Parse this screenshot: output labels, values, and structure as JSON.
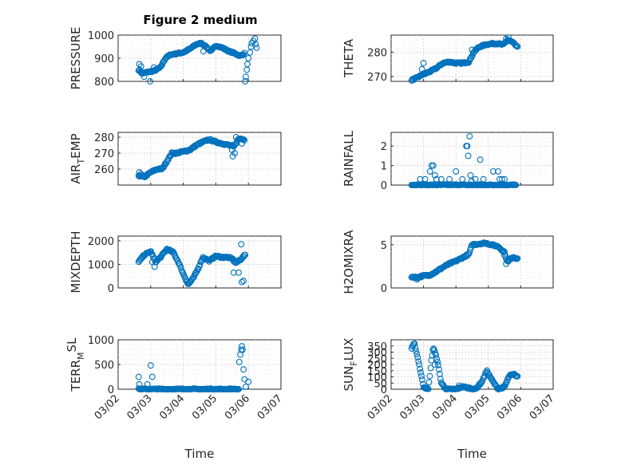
{
  "figure": {
    "title": "Figure 2 medium"
  },
  "colors": {
    "marker": "#0072bd",
    "axis": "#262626",
    "background": "#ffffff"
  },
  "chart_data": [
    {
      "type": "scatter",
      "id": "pressure",
      "ylabel": "PRESSURE",
      "ysub": "",
      "xlabel": "",
      "xlim": [
        0,
        5
      ],
      "ylim": [
        800,
        1000
      ],
      "yticks": [
        800,
        900,
        1000
      ],
      "xticks": [
        0,
        1,
        2,
        3,
        4,
        5
      ],
      "xticklabels": [
        "03/02",
        "03/03",
        "03/04",
        "03/05",
        "03/06",
        "03/07"
      ],
      "show_xticklabels": false,
      "knots": [
        [
          0.63,
          850
        ],
        [
          0.75,
          835
        ],
        [
          0.9,
          840
        ],
        [
          1.1,
          845
        ],
        [
          1.3,
          860
        ],
        [
          1.45,
          900
        ],
        [
          1.6,
          915
        ],
        [
          1.8,
          920
        ],
        [
          2.0,
          925
        ],
        [
          2.2,
          940
        ],
        [
          2.4,
          960
        ],
        [
          2.55,
          965
        ],
        [
          2.7,
          950
        ],
        [
          2.85,
          930
        ],
        [
          3.0,
          955
        ],
        [
          3.2,
          945
        ],
        [
          3.4,
          930
        ],
        [
          3.6,
          920
        ],
        [
          3.75,
          910
        ],
        [
          3.87,
          920
        ]
      ],
      "outliers": [
        [
          0.65,
          875
        ],
        [
          0.7,
          865
        ],
        [
          0.72,
          835
        ],
        [
          0.8,
          820
        ],
        [
          0.98,
          800
        ],
        [
          1.1,
          860
        ],
        [
          2.62,
          930
        ],
        [
          3.9,
          800
        ],
        [
          3.92,
          820
        ],
        [
          3.95,
          850
        ],
        [
          3.97,
          875
        ],
        [
          4.0,
          900
        ],
        [
          4.05,
          925
        ],
        [
          4.08,
          950
        ],
        [
          4.1,
          965
        ],
        [
          4.15,
          975
        ],
        [
          4.2,
          985
        ],
        [
          4.22,
          960
        ],
        [
          4.25,
          945
        ]
      ],
      "n": 140
    },
    {
      "type": "scatter",
      "id": "theta",
      "ylabel": "THETA",
      "ysub": "",
      "xlabel": "",
      "xlim": [
        0,
        5
      ],
      "ylim": [
        268,
        287
      ],
      "yticks": [
        270,
        280
      ],
      "xticks": [
        0,
        1,
        2,
        3,
        4,
        5
      ],
      "xticklabels": [
        "03/02",
        "03/03",
        "03/04",
        "03/05",
        "03/06",
        "03/07"
      ],
      "show_xticklabels": false,
      "knots": [
        [
          0.63,
          268.5
        ],
        [
          0.8,
          269.5
        ],
        [
          1.0,
          271
        ],
        [
          1.2,
          272
        ],
        [
          1.4,
          273.5
        ],
        [
          1.6,
          275.5
        ],
        [
          1.8,
          276
        ],
        [
          2.0,
          275.5
        ],
        [
          2.2,
          275.5
        ],
        [
          2.4,
          276
        ],
        [
          2.55,
          280
        ],
        [
          2.7,
          282
        ],
        [
          2.9,
          283
        ],
        [
          3.1,
          283.5
        ],
        [
          3.3,
          283.5
        ],
        [
          3.45,
          283
        ],
        [
          3.6,
          285
        ],
        [
          3.75,
          284
        ],
        [
          3.9,
          282
        ]
      ],
      "outliers": [
        [
          0.95,
          273
        ],
        [
          1.0,
          275.5
        ],
        [
          1.05,
          271
        ],
        [
          2.5,
          281
        ],
        [
          3.55,
          285.5
        ],
        [
          3.62,
          286
        ]
      ],
      "n": 140
    },
    {
      "type": "scatter",
      "id": "air_temp",
      "ylabel": "AIR",
      "ysub": "T",
      "ysuffix": "EMP",
      "xlabel": "",
      "xlim": [
        0,
        5
      ],
      "ylim": [
        250,
        283
      ],
      "yticks": [
        260,
        270,
        280
      ],
      "xticks": [
        0,
        1,
        2,
        3,
        4,
        5
      ],
      "xticklabels": [
        "03/02",
        "03/03",
        "03/04",
        "03/05",
        "03/06",
        "03/07"
      ],
      "show_xticklabels": false,
      "knots": [
        [
          0.63,
          256
        ],
        [
          0.8,
          255
        ],
        [
          1.0,
          258
        ],
        [
          1.2,
          260
        ],
        [
          1.35,
          260
        ],
        [
          1.5,
          265
        ],
        [
          1.65,
          270
        ],
        [
          1.8,
          270
        ],
        [
          2.0,
          271
        ],
        [
          2.2,
          272
        ],
        [
          2.4,
          275
        ],
        [
          2.6,
          277
        ],
        [
          2.8,
          278.5
        ],
        [
          3.0,
          277
        ],
        [
          3.2,
          276
        ],
        [
          3.4,
          275
        ],
        [
          3.55,
          274
        ],
        [
          3.7,
          279
        ],
        [
          3.85,
          279
        ]
      ],
      "outliers": [
        [
          0.65,
          258
        ],
        [
          0.7,
          257
        ],
        [
          3.5,
          272
        ],
        [
          3.52,
          268
        ],
        [
          3.58,
          270
        ],
        [
          3.62,
          280
        ],
        [
          3.8,
          276
        ],
        [
          3.88,
          278
        ]
      ],
      "n": 140
    },
    {
      "type": "scatter",
      "id": "rainfall",
      "ylabel": "RAINFALL",
      "ysub": "",
      "xlabel": "",
      "xlim": [
        0,
        5
      ],
      "ylim": [
        0,
        2.7
      ],
      "yticks": [
        0,
        1,
        2
      ],
      "xticks": [
        0,
        1,
        2,
        3,
        4,
        5
      ],
      "xticklabels": [
        "03/02",
        "03/03",
        "03/04",
        "03/05",
        "03/06",
        "03/07"
      ],
      "show_xticklabels": false,
      "knots": [
        [
          0.63,
          0
        ],
        [
          3.85,
          0
        ]
      ],
      "outliers": [
        [
          0.9,
          0.3
        ],
        [
          1.05,
          0.3
        ],
        [
          1.2,
          0.7
        ],
        [
          1.25,
          1.0
        ],
        [
          1.3,
          1.0
        ],
        [
          1.35,
          0.5
        ],
        [
          1.4,
          0.3
        ],
        [
          1.55,
          0.3
        ],
        [
          1.8,
          0.3
        ],
        [
          2.0,
          0.7
        ],
        [
          2.2,
          0.3
        ],
        [
          2.32,
          2.0
        ],
        [
          2.35,
          2.0
        ],
        [
          2.38,
          1.5
        ],
        [
          2.42,
          2.5
        ],
        [
          2.45,
          0.5
        ],
        [
          2.48,
          0.2
        ],
        [
          2.6,
          0.3
        ],
        [
          2.75,
          1.3
        ],
        [
          2.85,
          0.3
        ],
        [
          3.15,
          0.7
        ],
        [
          3.3,
          0.7
        ],
        [
          3.35,
          0.3
        ],
        [
          3.42,
          0.3
        ],
        [
          3.5,
          0.3
        ]
      ],
      "n": 120
    },
    {
      "type": "scatter",
      "id": "mixdepth",
      "ylabel": "MIXDEPTH",
      "ysub": "",
      "xlabel": "",
      "xlim": [
        0,
        5
      ],
      "ylim": [
        0,
        2200
      ],
      "yticks": [
        0,
        1000,
        2000
      ],
      "xticks": [
        0,
        1,
        2,
        3,
        4,
        5
      ],
      "xticklabels": [
        "03/02",
        "03/03",
        "03/04",
        "03/05",
        "03/06",
        "03/07"
      ],
      "show_xticklabels": false,
      "knots": [
        [
          0.63,
          1100
        ],
        [
          0.8,
          1400
        ],
        [
          1.0,
          1550
        ],
        [
          1.15,
          1100
        ],
        [
          1.3,
          1300
        ],
        [
          1.5,
          1650
        ],
        [
          1.7,
          1500
        ],
        [
          1.85,
          1100
        ],
        [
          2.0,
          600
        ],
        [
          2.15,
          150
        ],
        [
          2.3,
          400
        ],
        [
          2.45,
          800
        ],
        [
          2.6,
          1300
        ],
        [
          2.8,
          1150
        ],
        [
          3.0,
          1350
        ],
        [
          3.2,
          1300
        ],
        [
          3.35,
          1300
        ],
        [
          3.5,
          1250
        ],
        [
          3.6,
          1050
        ],
        [
          3.75,
          1200
        ],
        [
          3.9,
          1400
        ]
      ],
      "outliers": [
        [
          1.05,
          1100
        ],
        [
          1.12,
          900
        ],
        [
          3.55,
          650
        ],
        [
          3.7,
          650
        ],
        [
          3.78,
          1850
        ],
        [
          3.8,
          250
        ],
        [
          3.85,
          300
        ]
      ],
      "n": 140
    },
    {
      "type": "scatter",
      "id": "h2omixra",
      "ylabel": "H2OMIXRA",
      "ysub": "",
      "xlabel": "",
      "xlim": [
        0,
        5
      ],
      "ylim": [
        0,
        6
      ],
      "yticks": [
        0,
        5
      ],
      "xticks": [
        0,
        1,
        2,
        3,
        4,
        5
      ],
      "xticklabels": [
        "03/02",
        "03/03",
        "03/04",
        "03/05",
        "03/06",
        "03/07"
      ],
      "show_xticklabels": false,
      "knots": [
        [
          0.63,
          1.3
        ],
        [
          0.8,
          1.2
        ],
        [
          1.0,
          1.4
        ],
        [
          1.2,
          1.5
        ],
        [
          1.4,
          1.9
        ],
        [
          1.6,
          2.4
        ],
        [
          1.8,
          2.8
        ],
        [
          2.0,
          3.1
        ],
        [
          2.2,
          3.5
        ],
        [
          2.4,
          3.9
        ],
        [
          2.5,
          5.0
        ],
        [
          2.7,
          5.1
        ],
        [
          2.9,
          5.2
        ],
        [
          3.1,
          5.0
        ],
        [
          3.3,
          4.8
        ],
        [
          3.45,
          4.3
        ],
        [
          3.6,
          3.0
        ],
        [
          3.75,
          3.6
        ],
        [
          3.9,
          3.4
        ]
      ],
      "outliers": [
        [
          0.8,
          1.0
        ],
        [
          3.5,
          4.2
        ],
        [
          3.55,
          2.8
        ]
      ],
      "n": 140
    },
    {
      "type": "scatter",
      "id": "terr_msl",
      "ylabel": "TERR",
      "ysub": "M",
      "ysup": "SL",
      "xlabel": "Time",
      "xlim": [
        0,
        5
      ],
      "ylim": [
        0,
        1000
      ],
      "yticks": [
        0,
        500,
        1000
      ],
      "xticks": [
        0,
        1,
        2,
        3,
        4,
        5
      ],
      "xticklabels": [
        "03/02",
        "03/03",
        "03/04",
        "03/05",
        "03/06",
        "03/07"
      ],
      "show_xticklabels": true,
      "knots": [
        [
          0.63,
          0
        ],
        [
          3.7,
          0
        ]
      ],
      "outliers": [
        [
          0.63,
          250
        ],
        [
          0.65,
          100
        ],
        [
          0.9,
          100
        ],
        [
          1.0,
          480
        ],
        [
          1.05,
          250
        ],
        [
          3.72,
          550
        ],
        [
          3.75,
          700
        ],
        [
          3.78,
          800
        ],
        [
          3.8,
          870
        ],
        [
          3.82,
          800
        ],
        [
          3.85,
          400
        ],
        [
          3.88,
          200
        ],
        [
          3.92,
          50
        ],
        [
          4.0,
          150
        ]
      ],
      "n": 120
    },
    {
      "type": "scatter",
      "id": "sun_flux",
      "ylabel": "SUN",
      "ysub": "F",
      "ysuffix": "LUX",
      "xlabel": "Time",
      "xlim": [
        0,
        5
      ],
      "ylim": [
        0,
        400
      ],
      "yticks": [
        0,
        50,
        100,
        150,
        200,
        250,
        300,
        350
      ],
      "xticks": [
        0,
        1,
        2,
        3,
        4,
        5
      ],
      "xticklabels": [
        "03/02",
        "03/03",
        "03/04",
        "03/05",
        "03/06",
        "03/07"
      ],
      "show_xticklabels": true,
      "knots": [
        [
          0.63,
          330
        ],
        [
          0.72,
          370
        ],
        [
          0.85,
          220
        ],
        [
          1.0,
          20
        ],
        [
          1.15,
          0
        ],
        [
          1.25,
          250
        ],
        [
          1.3,
          340
        ],
        [
          1.42,
          240
        ],
        [
          1.55,
          50
        ],
        [
          1.7,
          0
        ],
        [
          2.0,
          0
        ],
        [
          2.2,
          20
        ],
        [
          2.4,
          10
        ],
        [
          2.6,
          0
        ],
        [
          2.8,
          60
        ],
        [
          2.95,
          150
        ],
        [
          3.1,
          80
        ],
        [
          3.3,
          0
        ],
        [
          3.5,
          20
        ],
        [
          3.65,
          110
        ],
        [
          3.8,
          120
        ],
        [
          3.9,
          100
        ]
      ],
      "outliers": [
        [
          1.35,
          200
        ],
        [
          2.1,
          30
        ],
        [
          3.45,
          10
        ]
      ],
      "n": 140
    }
  ]
}
